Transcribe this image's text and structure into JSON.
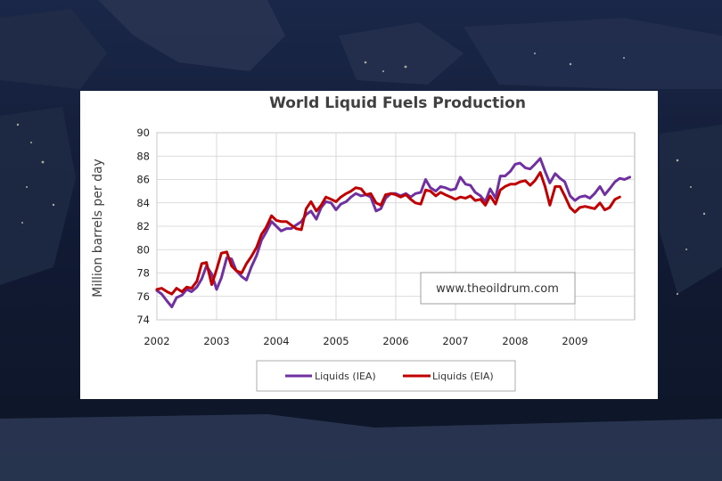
{
  "chart_data": {
    "type": "line",
    "title": "World Liquid Fuels Production",
    "xlabel": "",
    "ylabel": "Million barrels per day",
    "xlim": [
      2002,
      2010
    ],
    "ylim": [
      74,
      90
    ],
    "yticks": [
      74,
      76,
      78,
      80,
      82,
      84,
      86,
      88,
      90
    ],
    "xticks": [
      2002,
      2003,
      2004,
      2005,
      2006,
      2007,
      2008,
      2009
    ],
    "grid": true,
    "legend": "bottom",
    "annotation": "www.theoildrum.com",
    "series": [
      {
        "name": "Liquids (IEA)",
        "color": "#7030a0",
        "x": [
          2002.0,
          2002.08,
          2002.17,
          2002.25,
          2002.33,
          2002.42,
          2002.5,
          2002.58,
          2002.67,
          2002.75,
          2002.83,
          2002.92,
          2003.0,
          2003.08,
          2003.17,
          2003.25,
          2003.33,
          2003.42,
          2003.5,
          2003.58,
          2003.67,
          2003.75,
          2003.83,
          2003.92,
          2004.0,
          2004.08,
          2004.17,
          2004.25,
          2004.33,
          2004.42,
          2004.5,
          2004.58,
          2004.67,
          2004.75,
          2004.83,
          2004.92,
          2005.0,
          2005.08,
          2005.17,
          2005.25,
          2005.33,
          2005.42,
          2005.5,
          2005.58,
          2005.67,
          2005.75,
          2005.83,
          2005.92,
          2006.0,
          2006.08,
          2006.17,
          2006.25,
          2006.33,
          2006.42,
          2006.5,
          2006.58,
          2006.67,
          2006.75,
          2006.83,
          2006.92,
          2007.0,
          2007.08,
          2007.17,
          2007.25,
          2007.33,
          2007.42,
          2007.5,
          2007.58,
          2007.67,
          2007.75,
          2007.83,
          2007.92,
          2008.0,
          2008.08,
          2008.17,
          2008.25,
          2008.33,
          2008.42,
          2008.5,
          2008.58,
          2008.67,
          2008.75,
          2008.83,
          2008.92,
          2009.0,
          2009.08,
          2009.17,
          2009.25,
          2009.33,
          2009.42,
          2009.5,
          2009.58,
          2009.67,
          2009.75,
          2009.83,
          2009.92
        ],
        "values": [
          76.5,
          76.2,
          75.6,
          75.1,
          75.9,
          76.1,
          76.6,
          76.4,
          76.8,
          77.5,
          78.6,
          77.9,
          76.6,
          77.6,
          79.3,
          79.2,
          78.2,
          77.7,
          77.4,
          78.5,
          79.5,
          80.8,
          81.5,
          82.4,
          82.0,
          81.6,
          81.8,
          81.8,
          82.1,
          82.4,
          83.0,
          83.3,
          82.6,
          83.6,
          84.1,
          84.0,
          83.4,
          83.9,
          84.1,
          84.5,
          84.8,
          84.6,
          84.7,
          84.5,
          83.3,
          83.5,
          84.4,
          84.8,
          84.8,
          84.6,
          84.8,
          84.5,
          84.8,
          84.9,
          86.0,
          85.3,
          85.0,
          85.4,
          85.3,
          85.1,
          85.2,
          86.2,
          85.6,
          85.5,
          84.9,
          84.6,
          84.1,
          85.2,
          84.4,
          86.3,
          86.3,
          86.7,
          87.3,
          87.4,
          87.0,
          86.9,
          87.3,
          87.8,
          86.7,
          85.7,
          86.5,
          86.1,
          85.8,
          84.6,
          84.2,
          84.5,
          84.6,
          84.4,
          84.8,
          85.4,
          84.7,
          85.2,
          85.8,
          86.1,
          86.0,
          86.2
        ]
      },
      {
        "name": "Liquids (EIA)",
        "color": "#c00000",
        "x": [
          2002.0,
          2002.08,
          2002.17,
          2002.25,
          2002.33,
          2002.42,
          2002.5,
          2002.58,
          2002.67,
          2002.75,
          2002.83,
          2002.92,
          2003.0,
          2003.08,
          2003.17,
          2003.25,
          2003.33,
          2003.42,
          2003.5,
          2003.58,
          2003.67,
          2003.75,
          2003.83,
          2003.92,
          2004.0,
          2004.08,
          2004.17,
          2004.25,
          2004.33,
          2004.42,
          2004.5,
          2004.58,
          2004.67,
          2004.75,
          2004.83,
          2004.92,
          2005.0,
          2005.08,
          2005.17,
          2005.25,
          2005.33,
          2005.42,
          2005.5,
          2005.58,
          2005.67,
          2005.75,
          2005.83,
          2005.92,
          2006.0,
          2006.08,
          2006.17,
          2006.25,
          2006.33,
          2006.42,
          2006.5,
          2006.58,
          2006.67,
          2006.75,
          2006.83,
          2006.92,
          2007.0,
          2007.08,
          2007.17,
          2007.25,
          2007.33,
          2007.42,
          2007.5,
          2007.58,
          2007.67,
          2007.75,
          2007.83,
          2007.92,
          2008.0,
          2008.08,
          2008.17,
          2008.25,
          2008.33,
          2008.42,
          2008.5,
          2008.58,
          2008.67,
          2008.75,
          2008.83,
          2008.92,
          2009.0,
          2009.08,
          2009.17,
          2009.25,
          2009.33,
          2009.42,
          2009.5,
          2009.58,
          2009.67,
          2009.75
        ],
        "values": [
          76.6,
          76.7,
          76.4,
          76.2,
          76.7,
          76.4,
          76.8,
          76.7,
          77.3,
          78.8,
          78.9,
          77.0,
          78.3,
          79.7,
          79.8,
          78.6,
          78.2,
          78.0,
          78.8,
          79.4,
          80.2,
          81.3,
          81.9,
          82.9,
          82.5,
          82.4,
          82.4,
          82.1,
          81.8,
          81.7,
          83.5,
          84.1,
          83.3,
          83.8,
          84.5,
          84.3,
          84.1,
          84.5,
          84.8,
          85.0,
          85.3,
          85.2,
          84.7,
          84.8,
          84.0,
          83.8,
          84.7,
          84.8,
          84.7,
          84.5,
          84.7,
          84.3,
          84.0,
          83.9,
          85.1,
          85.0,
          84.6,
          84.9,
          84.7,
          84.5,
          84.3,
          84.5,
          84.4,
          84.6,
          84.2,
          84.3,
          83.8,
          84.6,
          83.9,
          85.1,
          85.4,
          85.6,
          85.6,
          85.8,
          85.9,
          85.5,
          85.9,
          86.6,
          85.4,
          83.8,
          85.4,
          85.4,
          84.6,
          83.6,
          83.2,
          83.6,
          83.7,
          83.6,
          83.5,
          84.0,
          83.4,
          83.6,
          84.3,
          84.5
        ]
      }
    ]
  }
}
